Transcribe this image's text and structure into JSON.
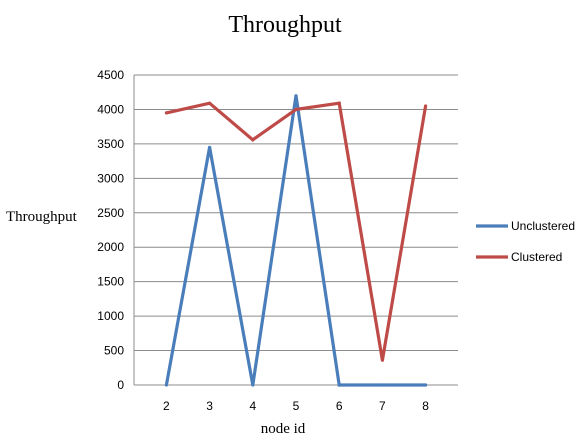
{
  "chart_data": {
    "type": "line",
    "title": "Throughput",
    "xlabel": "node id",
    "ylabel": "Throughput",
    "categories": [
      "2",
      "3",
      "4",
      "5",
      "6",
      "7",
      "8"
    ],
    "ylim": [
      0,
      4500
    ],
    "yticks": [
      0,
      500,
      1000,
      1500,
      2000,
      2500,
      3000,
      3500,
      4000,
      4500
    ],
    "grid": true,
    "legend_position": "right",
    "series": [
      {
        "name": "Unclustered",
        "color": "#4a7ebb",
        "values": [
          0,
          3450,
          0,
          4200,
          0,
          0,
          0
        ]
      },
      {
        "name": "Clustered",
        "color": "#be4b48",
        "values": [
          3950,
          4090,
          3560,
          4000,
          4090,
          360,
          4050
        ]
      }
    ]
  }
}
